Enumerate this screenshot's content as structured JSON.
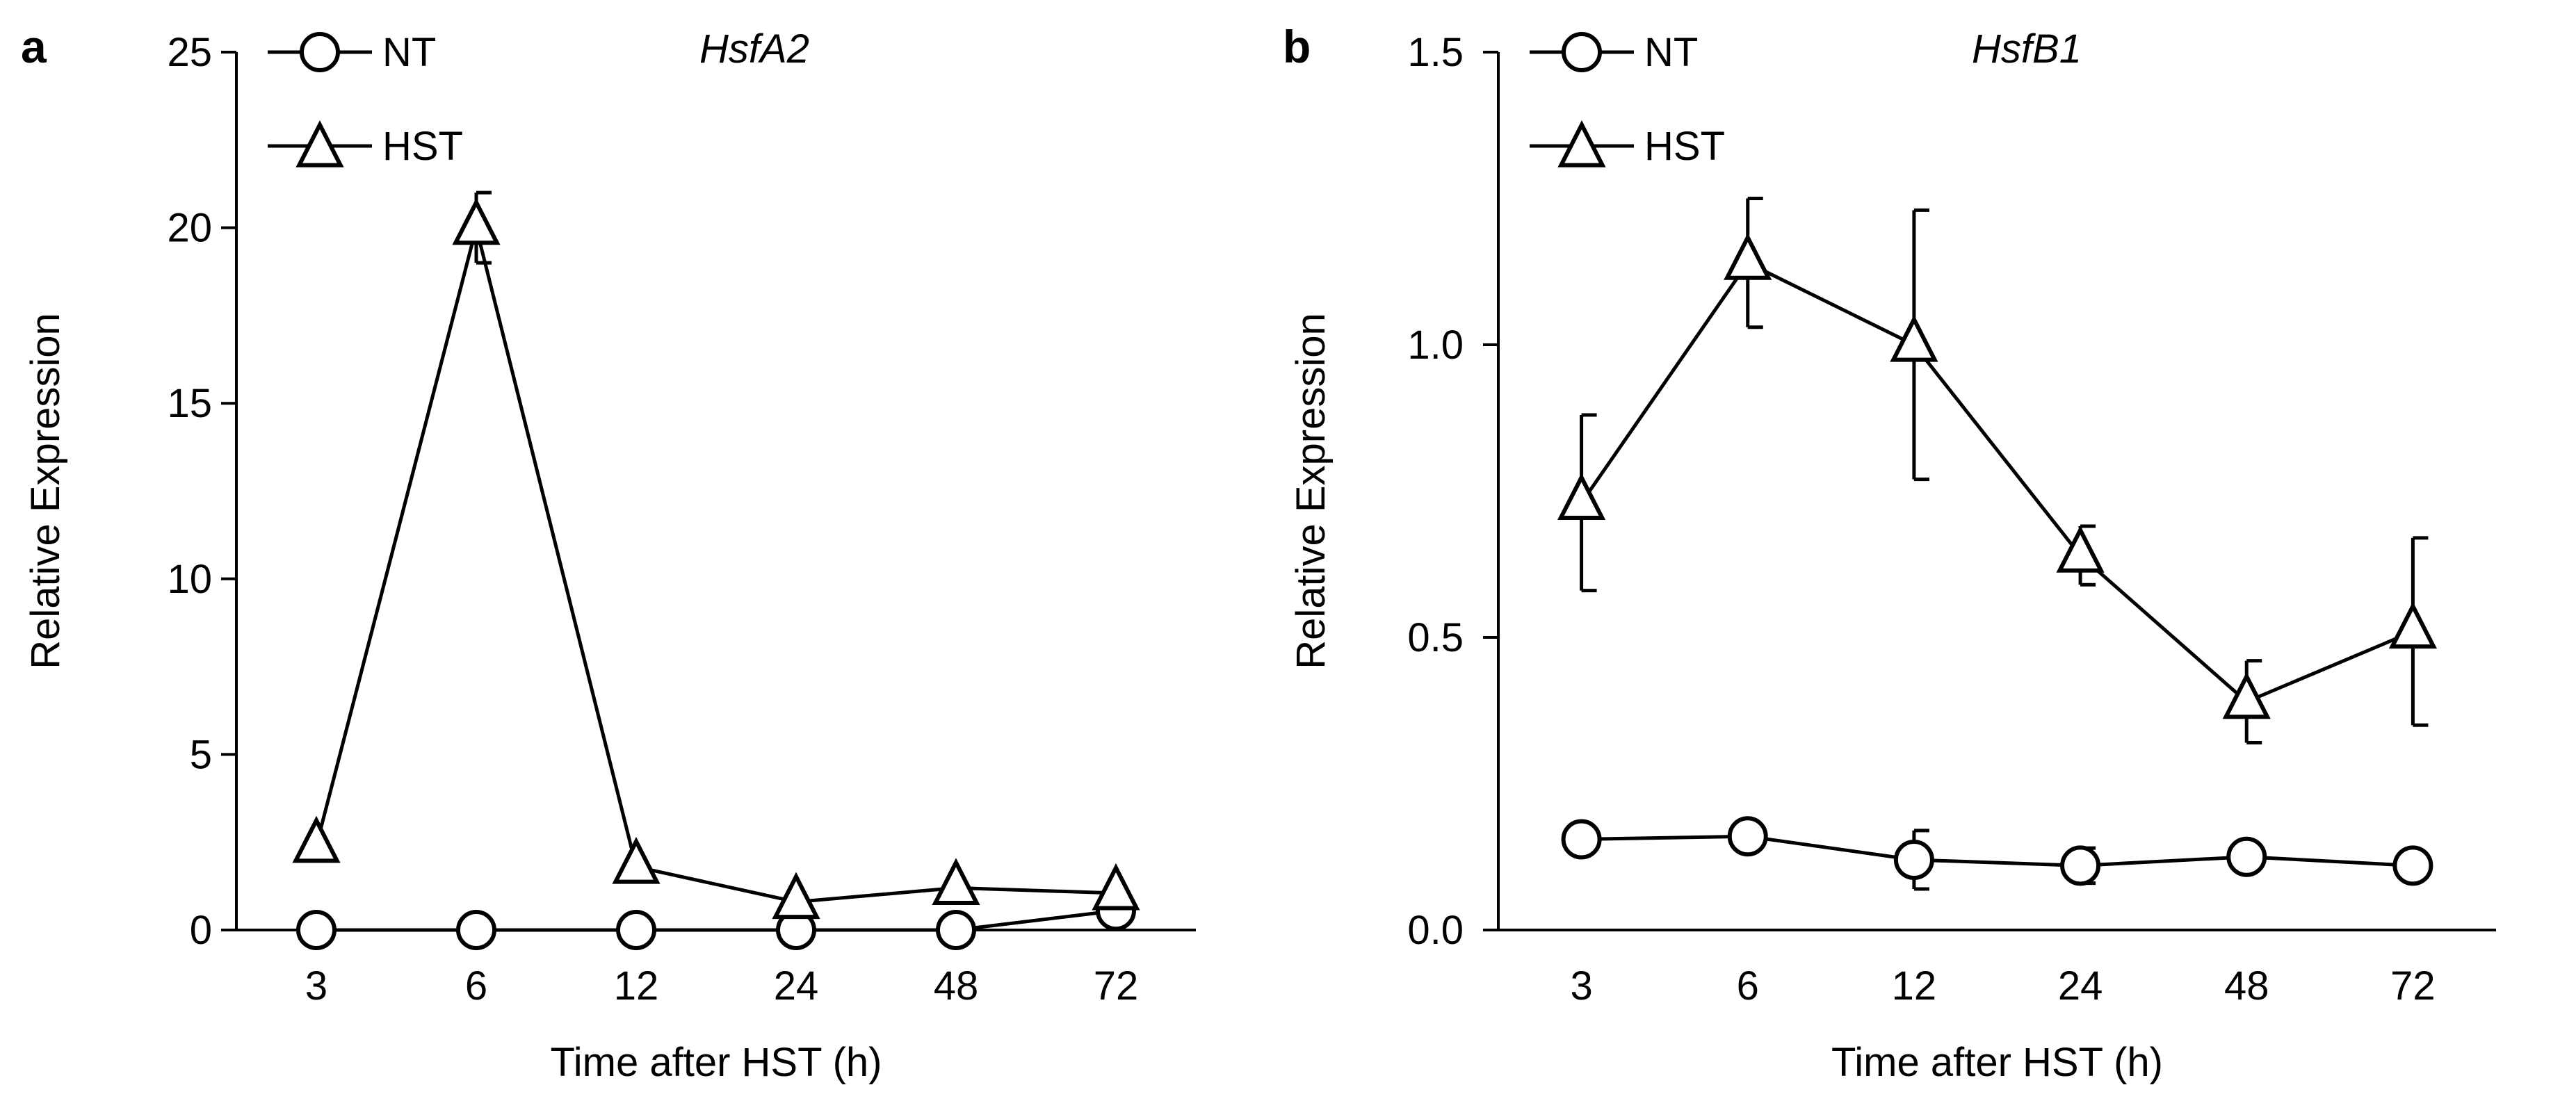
{
  "chart_data": [
    {
      "panel_label": "a",
      "type": "line",
      "title": "HsfA2",
      "xlabel": "Time after HST (h)",
      "ylabel": "Relative Expression",
      "categories": [
        "3",
        "6",
        "12",
        "24",
        "48",
        "72"
      ],
      "ylim": [
        0,
        25
      ],
      "yticks": [
        0,
        5,
        10,
        15,
        20,
        25
      ],
      "ytick_labels": [
        "0",
        "5",
        "10",
        "15",
        "20",
        "25"
      ],
      "grid": false,
      "legend_position": "top-left",
      "series": [
        {
          "name": "NT",
          "marker": "circle",
          "values": [
            0.0,
            0.0,
            0.0,
            0.0,
            0.0,
            0.55
          ],
          "errors": [
            0,
            0,
            0,
            0,
            0,
            0
          ]
        },
        {
          "name": "HST",
          "marker": "triangle",
          "values": [
            2.4,
            20.0,
            1.8,
            0.8,
            1.2,
            1.05
          ],
          "errors": [
            0,
            1.0,
            0,
            0,
            0,
            0
          ]
        }
      ]
    },
    {
      "panel_label": "b",
      "type": "line",
      "title": "HsfB1",
      "xlabel": "Time after HST (h)",
      "ylabel": "Relative Expression",
      "categories": [
        "3",
        "6",
        "12",
        "24",
        "48",
        "72"
      ],
      "ylim": [
        0,
        1.5
      ],
      "yticks": [
        0,
        0.5,
        1.0,
        1.5
      ],
      "ytick_labels": [
        "0.0",
        "0.5",
        "1.0",
        "1.5"
      ],
      "grid": false,
      "legend_position": "top-left",
      "series": [
        {
          "name": "NT",
          "marker": "circle",
          "values": [
            0.155,
            0.16,
            0.12,
            0.11,
            0.125,
            0.11
          ],
          "errors": [
            0,
            0,
            0.05,
            0.03,
            0,
            0.02
          ]
        },
        {
          "name": "HST",
          "marker": "triangle",
          "values": [
            0.73,
            1.14,
            1.0,
            0.64,
            0.39,
            0.51
          ],
          "errors": [
            0.15,
            0.11,
            0.23,
            0.05,
            0.07,
            0.16
          ]
        }
      ]
    }
  ]
}
